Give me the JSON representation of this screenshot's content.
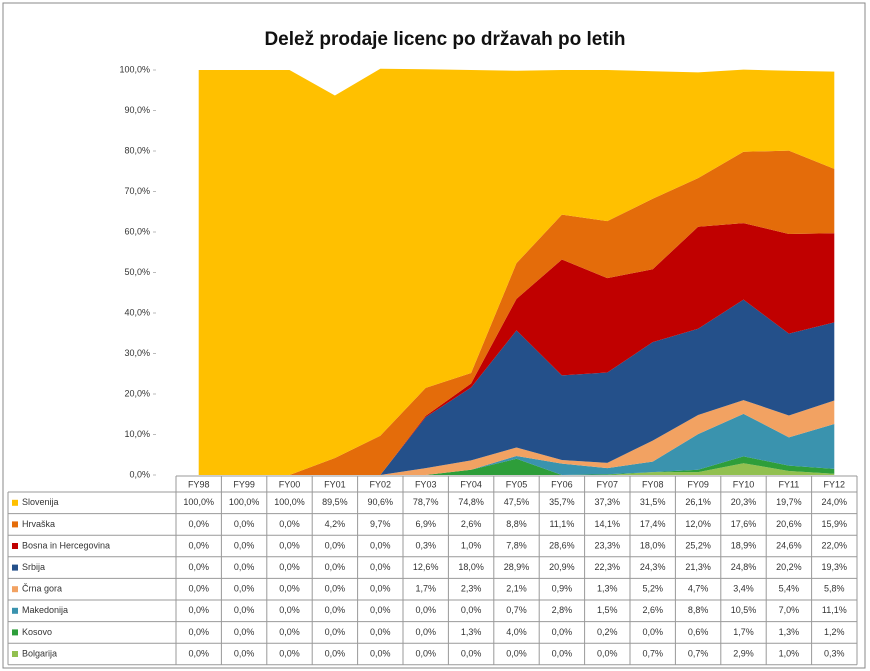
{
  "chart_data": {
    "type": "stacked-area",
    "title": "Delež prodaje licenc po državah po letih",
    "categories": [
      "FY98",
      "FY99",
      "FY00",
      "FY01",
      "FY02",
      "FY03",
      "FY04",
      "FY05",
      "FY06",
      "FY07",
      "FY08",
      "FY09",
      "FY10",
      "FY11",
      "FY12"
    ],
    "ylim": [
      0,
      100
    ],
    "yticks": [
      {
        "value": 0,
        "label": "0,0%"
      },
      {
        "value": 10,
        "label": "10,0%"
      },
      {
        "value": 20,
        "label": "20,0%"
      },
      {
        "value": 30,
        "label": "30,0%"
      },
      {
        "value": 40,
        "label": "40,0%"
      },
      {
        "value": 50,
        "label": "50,0%"
      },
      {
        "value": 60,
        "label": "60,0%"
      },
      {
        "value": 70,
        "label": "70,0%"
      },
      {
        "value": 80,
        "label": "80,0%"
      },
      {
        "value": 90,
        "label": "90,0%"
      },
      {
        "value": 100,
        "label": "100,0%"
      }
    ],
    "series": [
      {
        "name": "Slovenija",
        "color": "#FFC000",
        "values": [
          100.0,
          100.0,
          100.0,
          89.5,
          90.6,
          78.7,
          74.8,
          47.5,
          35.7,
          37.3,
          31.5,
          26.1,
          20.3,
          19.7,
          24.0
        ],
        "value_labels": [
          "100,0%",
          "100,0%",
          "100,0%",
          "89,5%",
          "90,6%",
          "78,7%",
          "74,8%",
          "47,5%",
          "35,7%",
          "37,3%",
          "31,5%",
          "26,1%",
          "20,3%",
          "19,7%",
          "24,0%"
        ]
      },
      {
        "name": "Hrvaška",
        "color": "#E46C0A",
        "values": [
          0,
          0,
          0,
          4.2,
          9.7,
          6.9,
          2.6,
          8.8,
          11.1,
          14.1,
          17.4,
          12.0,
          17.6,
          20.6,
          15.9
        ],
        "value_labels": [
          "0,0%",
          "0,0%",
          "0,0%",
          "4,2%",
          "9,7%",
          "6,9%",
          "2,6%",
          "8,8%",
          "11,1%",
          "14,1%",
          "17,4%",
          "12,0%",
          "17,6%",
          "20,6%",
          "15,9%"
        ]
      },
      {
        "name": "Bosna in Hercegovina",
        "color": "#C00000",
        "values": [
          0,
          0,
          0,
          0,
          0,
          0.3,
          1.0,
          7.8,
          28.6,
          23.3,
          18.0,
          25.2,
          18.9,
          24.6,
          22.0
        ],
        "value_labels": [
          "0,0%",
          "0,0%",
          "0,0%",
          "0,0%",
          "0,0%",
          "0,3%",
          "1,0%",
          "7,8%",
          "28,6%",
          "23,3%",
          "18,0%",
          "25,2%",
          "18,9%",
          "24,6%",
          "22,0%"
        ]
      },
      {
        "name": "Srbija",
        "color": "#24508A",
        "values": [
          0,
          0,
          0,
          0,
          0,
          12.6,
          18.0,
          28.9,
          20.9,
          22.3,
          24.3,
          21.3,
          24.8,
          20.2,
          19.3
        ],
        "value_labels": [
          "0,0%",
          "0,0%",
          "0,0%",
          "0,0%",
          "0,0%",
          "12,6%",
          "18,0%",
          "28,9%",
          "20,9%",
          "22,3%",
          "24,3%",
          "21,3%",
          "24,8%",
          "20,2%",
          "19,3%"
        ]
      },
      {
        "name": "Črna gora",
        "color": "#F2A262",
        "values": [
          0,
          0,
          0,
          0,
          0,
          1.7,
          2.3,
          2.1,
          0.9,
          1.3,
          5.2,
          4.7,
          3.4,
          5.4,
          5.8
        ],
        "value_labels": [
          "0,0%",
          "0,0%",
          "0,0%",
          "0,0%",
          "0,0%",
          "1,7%",
          "2,3%",
          "2,1%",
          "0,9%",
          "1,3%",
          "5,2%",
          "4,7%",
          "3,4%",
          "5,4%",
          "5,8%"
        ]
      },
      {
        "name": "Makedonija",
        "color": "#3A93AE",
        "values": [
          0,
          0,
          0,
          0,
          0,
          0,
          0,
          0.7,
          2.8,
          1.5,
          2.6,
          8.8,
          10.5,
          7.0,
          11.1
        ],
        "value_labels": [
          "0,0%",
          "0,0%",
          "0,0%",
          "0,0%",
          "0,0%",
          "0,0%",
          "0,0%",
          "0,7%",
          "2,8%",
          "1,5%",
          "2,6%",
          "8,8%",
          "10,5%",
          "7,0%",
          "11,1%"
        ]
      },
      {
        "name": "Kosovo",
        "color": "#2E9E3A",
        "values": [
          0,
          0,
          0,
          0,
          0,
          0,
          1.3,
          4.0,
          0,
          0.2,
          0,
          0.6,
          1.7,
          1.3,
          1.2
        ],
        "value_labels": [
          "0,0%",
          "0,0%",
          "0,0%",
          "0,0%",
          "0,0%",
          "0,0%",
          "1,3%",
          "4,0%",
          "0,0%",
          "0,2%",
          "0,0%",
          "0,6%",
          "1,7%",
          "1,3%",
          "1,2%"
        ]
      },
      {
        "name": "Bolgarija",
        "color": "#92C050",
        "values": [
          0,
          0,
          0,
          0,
          0,
          0,
          0,
          0,
          0,
          0,
          0.7,
          0.7,
          2.9,
          1.0,
          0.3
        ],
        "value_labels": [
          "0,0%",
          "0,0%",
          "0,0%",
          "0,0%",
          "0,0%",
          "0,0%",
          "0,0%",
          "0,0%",
          "0,0%",
          "0,0%",
          "0,7%",
          "0,7%",
          "2,9%",
          "1,0%",
          "0,3%"
        ]
      }
    ]
  }
}
